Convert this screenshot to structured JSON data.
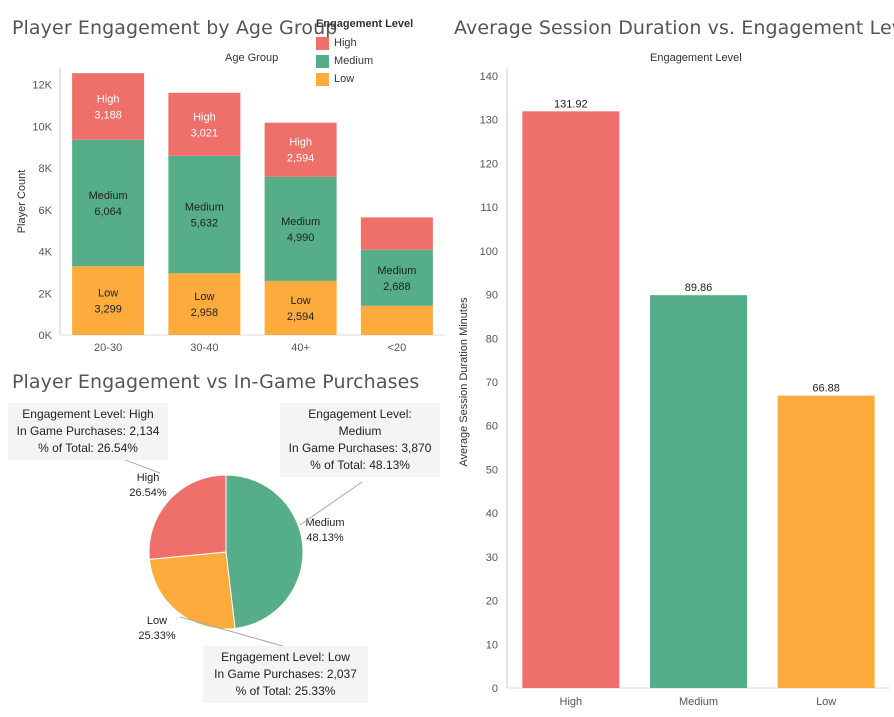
{
  "colors": {
    "High": "#ef6f6a",
    "Medium": "#55ad89",
    "Low": "#fdab3d"
  },
  "legend": {
    "title": "Engagement Level",
    "items": [
      "High",
      "Medium",
      "Low"
    ]
  },
  "chart_data": [
    {
      "type": "bar",
      "stacked": true,
      "title": "Player Engagement by Age Group",
      "subtitle": "Age Group",
      "xlabel": "",
      "ylabel": "Player Count",
      "ylim": [
        0,
        12800
      ],
      "yticks": [
        0,
        2000,
        4000,
        6000,
        8000,
        10000,
        12000
      ],
      "ytick_labels": [
        "0K",
        "2K",
        "4K",
        "6K",
        "8K",
        "10K",
        "12K"
      ],
      "categories": [
        "20-30",
        "30-40",
        "40+",
        "<20"
      ],
      "series": [
        {
          "name": "Low",
          "values": [
            3299,
            2958,
            2594,
            1400
          ]
        },
        {
          "name": "Medium",
          "values": [
            6064,
            5632,
            4990,
            2688
          ]
        },
        {
          "name": "High",
          "values": [
            3188,
            3021,
            2594,
            1550
          ]
        }
      ],
      "segment_labels": [
        {
          "cat": 0,
          "series": "High",
          "lines": [
            "High",
            "3,188"
          ]
        },
        {
          "cat": 0,
          "series": "Medium",
          "lines": [
            "Medium",
            "6,064"
          ]
        },
        {
          "cat": 0,
          "series": "Low",
          "lines": [
            "Low",
            "3,299"
          ]
        },
        {
          "cat": 1,
          "series": "High",
          "lines": [
            "High",
            "3,021"
          ]
        },
        {
          "cat": 1,
          "series": "Medium",
          "lines": [
            "Medium",
            "5,632"
          ]
        },
        {
          "cat": 1,
          "series": "Low",
          "lines": [
            "Low",
            "2,958"
          ]
        },
        {
          "cat": 2,
          "series": "High",
          "lines": [
            "High",
            "2,594"
          ]
        },
        {
          "cat": 2,
          "series": "Medium",
          "lines": [
            "Medium",
            "4,990"
          ]
        },
        {
          "cat": 2,
          "series": "Low",
          "lines": [
            "Low",
            "2,594"
          ]
        },
        {
          "cat": 3,
          "series": "Medium",
          "lines": [
            "Medium",
            "2,688"
          ]
        }
      ]
    },
    {
      "type": "bar",
      "title": "Average Session Duration vs. Engagement Level",
      "subtitle": "Engagement Level",
      "xlabel": "",
      "ylabel": "Average Session Duration Minutes",
      "ylim": [
        0,
        140
      ],
      "yticks": [
        0,
        10,
        20,
        30,
        40,
        50,
        60,
        70,
        80,
        90,
        100,
        110,
        120,
        130,
        140
      ],
      "categories": [
        "High",
        "Medium",
        "Low"
      ],
      "values": [
        131.92,
        89.86,
        66.88
      ],
      "value_labels": [
        "131.92",
        "89.86",
        "66.88"
      ]
    },
    {
      "type": "pie",
      "title": "Player Engagement vs In-Game Purchases",
      "categories": [
        "Medium",
        "Low",
        "High"
      ],
      "values": [
        3870,
        2037,
        2134
      ],
      "percent_labels": [
        "48.13%",
        "25.33%",
        "26.54%"
      ],
      "tooltips": [
        {
          "category": "High",
          "lines": [
            "Engagement Level: High",
            "In Game Purchases: 2,134",
            "% of Total: 26.54%"
          ]
        },
        {
          "category": "Medium",
          "lines": [
            "Engagement Level:",
            "Medium",
            "In Game Purchases: 3,870",
            "% of Total: 48.13%"
          ]
        },
        {
          "category": "Low",
          "lines": [
            "Engagement Level: Low",
            "In Game Purchases: 2,037",
            "% of Total: 25.33%"
          ]
        }
      ]
    }
  ]
}
